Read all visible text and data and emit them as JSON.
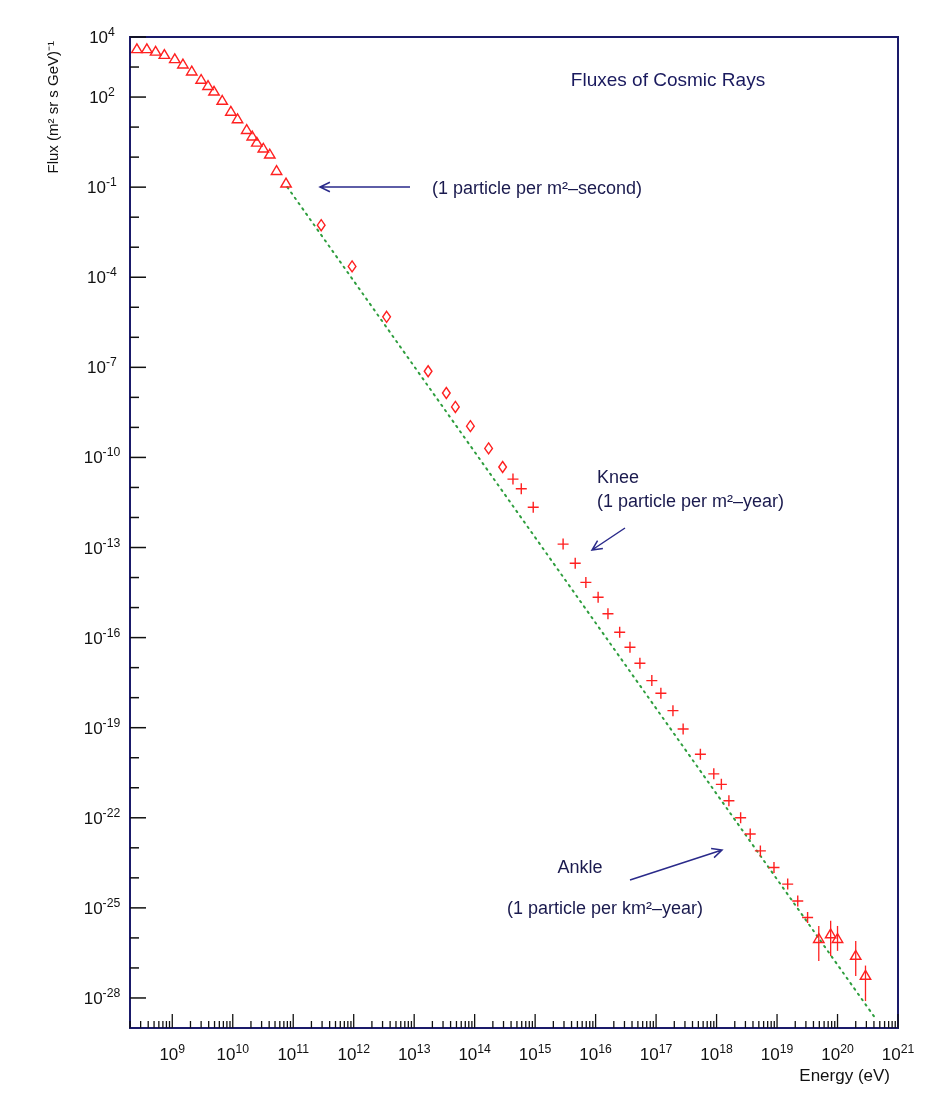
{
  "chart_data": {
    "type": "scatter",
    "title": "Fluxes of Cosmic Rays",
    "xlabel": "Energy (eV)",
    "ylabel": "Flux (m² sr s GeV)⁻¹",
    "log": "xy",
    "grid": false,
    "xlim": [
      200000000.0,
      1e+21
    ],
    "ylim": [
      1e-29,
      10000.0
    ],
    "xticks": [
      {
        "value": 1000000000.0,
        "label": "10$^{9}$"
      },
      {
        "value": 10000000000.0,
        "label": "10$^{10}$"
      },
      {
        "value": 100000000000.0,
        "label": "10$^{11}$"
      },
      {
        "value": 1000000000000.0,
        "label": "10$^{12}$"
      },
      {
        "value": 10000000000000.0,
        "label": "10$^{13}$"
      },
      {
        "value": 100000000000000.0,
        "label": "10$^{14}$"
      },
      {
        "value": 1000000000000000.0,
        "label": "10$^{15}$"
      },
      {
        "value": 1e+16,
        "label": "10$^{16}$"
      },
      {
        "value": 1e+17,
        "label": "10$^{17}$"
      },
      {
        "value": 1e+18,
        "label": "10$^{18}$"
      },
      {
        "value": 1e+19,
        "label": "10$^{19}$"
      },
      {
        "value": 1e+20,
        "label": "10$^{20}$"
      },
      {
        "value": 1e+21,
        "label": "10$^{21}$"
      },
      {
        "value": 200000000.0,
        "label": null
      },
      {
        "value": 300000000.0,
        "label": null
      },
      {
        "value": 400000000.0,
        "label": null
      },
      {
        "value": 500000000.0,
        "label": null
      },
      {
        "value": 600000000.0,
        "label": null
      },
      {
        "value": 700000000.0,
        "label": null
      },
      {
        "value": 800000000.0,
        "label": null
      },
      {
        "value": 900000000.0,
        "label": null
      },
      {
        "value": 2000000000.0,
        "label": null
      },
      {
        "value": 3000000000.0,
        "label": null
      },
      {
        "value": 4000000000.0,
        "label": null
      },
      {
        "value": 5000000000.0,
        "label": null
      },
      {
        "value": 6000000000.0,
        "label": null
      },
      {
        "value": 7000000000.0,
        "label": null
      },
      {
        "value": 8000000000.0,
        "label": null
      },
      {
        "value": 9000000000.0,
        "label": null
      },
      {
        "value": 20000000000.0,
        "label": null
      },
      {
        "value": 30000000000.0,
        "label": null
      },
      {
        "value": 40000000000.0,
        "label": null
      },
      {
        "value": 50000000000.0,
        "label": null
      },
      {
        "value": 60000000000.0,
        "label": null
      },
      {
        "value": 70000000000.0,
        "label": null
      },
      {
        "value": 80000000000.0,
        "label": null
      },
      {
        "value": 90000000000.0,
        "label": null
      },
      {
        "value": 200000000000.0,
        "label": null
      },
      {
        "value": 300000000000.0,
        "label": null
      },
      {
        "value": 400000000000.0,
        "label": null
      },
      {
        "value": 500000000000.0,
        "label": null
      },
      {
        "value": 600000000000.0,
        "label": null
      },
      {
        "value": 700000000000.0,
        "label": null
      },
      {
        "value": 800000000000.0,
        "label": null
      },
      {
        "value": 900000000000.0,
        "label": null
      },
      {
        "value": 2000000000000.0,
        "label": null
      },
      {
        "value": 3000000000000.0,
        "label": null
      },
      {
        "value": 4000000000000.0,
        "label": null
      },
      {
        "value": 5000000000000.0,
        "label": null
      },
      {
        "value": 6000000000000.0,
        "label": null
      },
      {
        "value": 7000000000000.0,
        "label": null
      },
      {
        "value": 8000000000000.0,
        "label": null
      },
      {
        "value": 9000000000000.0,
        "label": null
      },
      {
        "value": 20000000000000.0,
        "label": null
      },
      {
        "value": 30000000000000.0,
        "label": null
      },
      {
        "value": 40000000000000.0,
        "label": null
      },
      {
        "value": 50000000000000.0,
        "label": null
      },
      {
        "value": 60000000000000.0,
        "label": null
      },
      {
        "value": 70000000000000.0,
        "label": null
      },
      {
        "value": 80000000000000.0,
        "label": null
      },
      {
        "value": 90000000000000.0,
        "label": null
      },
      {
        "value": 200000000000000.0,
        "label": null
      },
      {
        "value": 300000000000000.0,
        "label": null
      },
      {
        "value": 400000000000000.0,
        "label": null
      },
      {
        "value": 500000000000000.0,
        "label": null
      },
      {
        "value": 600000000000000.0,
        "label": null
      },
      {
        "value": 700000000000000.0,
        "label": null
      },
      {
        "value": 800000000000000.0,
        "label": null
      },
      {
        "value": 900000000000000.0,
        "label": null
      },
      {
        "value": 2000000000000000.0,
        "label": null
      },
      {
        "value": 3000000000000000.0,
        "label": null
      },
      {
        "value": 4000000000000000.0,
        "label": null
      },
      {
        "value": 5000000000000000.0,
        "label": null
      },
      {
        "value": 6000000000000000.0,
        "label": null
      },
      {
        "value": 7000000000000000.0,
        "label": null
      },
      {
        "value": 8000000000000000.0,
        "label": null
      },
      {
        "value": 9000000000000000.0,
        "label": null
      },
      {
        "value": 2e+16,
        "label": null
      },
      {
        "value": 3e+16,
        "label": null
      },
      {
        "value": 4e+16,
        "label": null
      },
      {
        "value": 5e+16,
        "label": null
      },
      {
        "value": 6e+16,
        "label": null
      },
      {
        "value": 7e+16,
        "label": null
      },
      {
        "value": 8e+16,
        "label": null
      },
      {
        "value": 9e+16,
        "label": null
      },
      {
        "value": 2e+17,
        "label": null
      },
      {
        "value": 3e+17,
        "label": null
      },
      {
        "value": 4e+17,
        "label": null
      },
      {
        "value": 5e+17,
        "label": null
      },
      {
        "value": 6e+17,
        "label": null
      },
      {
        "value": 7e+17,
        "label": null
      },
      {
        "value": 8e+17,
        "label": null
      },
      {
        "value": 9e+17,
        "label": null
      },
      {
        "value": 2e+18,
        "label": null
      },
      {
        "value": 3e+18,
        "label": null
      },
      {
        "value": 4e+18,
        "label": null
      },
      {
        "value": 5e+18,
        "label": null
      },
      {
        "value": 6e+18,
        "label": null
      },
      {
        "value": 7e+18,
        "label": null
      },
      {
        "value": 8e+18,
        "label": null
      },
      {
        "value": 9e+18,
        "label": null
      },
      {
        "value": 2e+19,
        "label": null
      },
      {
        "value": 3e+19,
        "label": null
      },
      {
        "value": 4e+19,
        "label": null
      },
      {
        "value": 5e+19,
        "label": null
      },
      {
        "value": 6e+19,
        "label": null
      },
      {
        "value": 7e+19,
        "label": null
      },
      {
        "value": 8e+19,
        "label": null
      },
      {
        "value": 9e+19,
        "label": null
      },
      {
        "value": 2e+20,
        "label": null
      },
      {
        "value": 3e+20,
        "label": null
      },
      {
        "value": 4e+20,
        "label": null
      },
      {
        "value": 5e+20,
        "label": null
      },
      {
        "value": 6e+20,
        "label": null
      },
      {
        "value": 7e+20,
        "label": null
      },
      {
        "value": 8e+20,
        "label": null
      },
      {
        "value": 9e+20,
        "label": null
      }
    ],
    "yticks": [
      {
        "value": 10000.0,
        "label": "10$^{4}$"
      },
      {
        "value": 100,
        "label": "10$^{2}$"
      },
      {
        "value": 0.1,
        "label": "10$^{-1}$"
      },
      {
        "value": 0.0001,
        "label": "10$^{-4}$"
      },
      {
        "value": 1e-07,
        "label": "10$^{-7}$"
      },
      {
        "value": 1e-10,
        "label": "10$^{-10}$"
      },
      {
        "value": 1e-13,
        "label": "10$^{-13}$"
      },
      {
        "value": 1e-16,
        "label": "10$^{-16}$"
      },
      {
        "value": 1e-19,
        "label": "10$^{-19}$"
      },
      {
        "value": 1e-22,
        "label": "10$^{-22}$"
      },
      {
        "value": 1e-25,
        "label": "10$^{-25}$"
      },
      {
        "value": 1e-28,
        "label": "10$^{-28}$"
      },
      {
        "value": 1000.0,
        "label": null
      },
      {
        "value": 10,
        "label": null
      },
      {
        "value": 1,
        "label": null
      },
      {
        "value": 0.01,
        "label": null
      },
      {
        "value": 0.001,
        "label": null
      },
      {
        "value": 1e-05,
        "label": null
      },
      {
        "value": 1e-06,
        "label": null
      },
      {
        "value": 1e-08,
        "label": null
      },
      {
        "value": 1e-09,
        "label": null
      },
      {
        "value": 1e-11,
        "label": null
      },
      {
        "value": 1e-12,
        "label": null
      },
      {
        "value": 1e-14,
        "label": null
      },
      {
        "value": 1e-15,
        "label": null
      },
      {
        "value": 1e-17,
        "label": null
      },
      {
        "value": 1e-18,
        "label": null
      },
      {
        "value": 1e-20,
        "label": null
      },
      {
        "value": 1e-21,
        "label": null
      },
      {
        "value": 1e-23,
        "label": null
      },
      {
        "value": 1e-24,
        "label": null
      },
      {
        "value": 1e-26,
        "label": null
      },
      {
        "value": 1e-27,
        "label": null
      }
    ],
    "series": [
      {
        "type": "line",
        "line_style": "dotted",
        "color": "#2e9e3e",
        "x": [
          80000000000.0,
          4.3e+20
        ],
        "values": [
          0.1,
          2e-29
        ]
      },
      {
        "marker": "triangle",
        "color": "#ff2020",
        "x": [
          260000000.0,
          380000000.0,
          530000000.0,
          740000000.0,
          1100000000.0,
          1500000000.0,
          2100000000.0,
          3000000000.0,
          3900000000.0,
          4900000000.0,
          6700000000.0,
          9300000000.0,
          12000000000.0,
          17000000000.0,
          21000000000.0,
          25000000000.0,
          32000000000.0,
          41000000000.0,
          53000000000.0,
          76000000000.0
        ],
        "values": [
          3900,
          3900,
          3200,
          2500,
          1800,
          1200,
          700,
          370,
          230,
          150,
          74,
          32,
          18,
          7.9,
          4.8,
          3.0,
          1.9,
          1.2,
          0.34,
          0.13
        ]
      },
      {
        "marker": "diamond",
        "color": "#ff2020",
        "x": [
          290000000000.0,
          940000000000.0,
          3500000000000.0,
          17000000000000.0,
          34000000000000.0,
          48000000000000.0,
          85000000000000.0,
          170000000000000.0,
          290000000000000.0
        ],
        "values": [
          0.0054,
          0.00023,
          4.8e-06,
          7.4e-08,
          1.4e-08,
          4.8e-09,
          1.1e-09,
          2e-10,
          4.8e-11
        ]
      },
      {
        "marker": "cross",
        "color": "#ff2020",
        "x": [
          430000000000000.0,
          590000000000000.0,
          930000000000000.0,
          2900000000000000.0,
          4600000000000000.0,
          6900000000000000.0,
          1.1e+16,
          1.6e+16,
          2.5e+16,
          3.7e+16,
          5.4e+16,
          8.5e+16,
          1.2e+17,
          1.9e+17,
          2.8e+17,
          5.4e+17,
          9e+17,
          1.2e+18,
          1.6e+18,
          2.5e+18,
          3.6e+18,
          5.3e+18,
          8.9e+18,
          1.5e+19,
          2.2e+19,
          3.2e+19
        ],
        "values": [
          1.9e-11,
          9.1e-12,
          2.2e-12,
          1.3e-13,
          3e-14,
          6.9e-15,
          2.2e-15,
          6.2e-16,
          1.5e-16,
          4.8e-17,
          1.4e-17,
          3.7e-18,
          1.4e-18,
          3.7e-19,
          9.1e-20,
          1.3e-20,
          2.9e-21,
          1.3e-21,
          3.7e-22,
          1e-22,
          2.9e-23,
          7.9e-24,
          2.2e-24,
          6.2e-25,
          1.7e-25,
          4.8e-26
        ]
      },
      {
        "marker": "triangle",
        "color": "#ff2020",
        "x": [
          4.9e+19,
          7.7e+19,
          1e+20,
          2e+20,
          2.9e+20
        ],
        "values": [
          9.1e-27,
          1.3e-26,
          9.1e-27,
          2.5e-27,
          5.4e-28
        ],
        "errors": [
          [
            1.7e-27,
            2.5e-26
          ],
          [
            2.5e-27,
            3.7e-26
          ],
          [
            3.7e-27,
            2.5e-26
          ],
          [
            5.4e-28,
            7.9e-27
          ],
          [
            7.9e-29,
            1.2e-27
          ]
        ]
      }
    ],
    "annotations": [
      "(1 particle per m²–second)",
      "Knee\n(1 particle per m²–year)",
      "Ankle\n(1 particle per km²–year)"
    ]
  }
}
